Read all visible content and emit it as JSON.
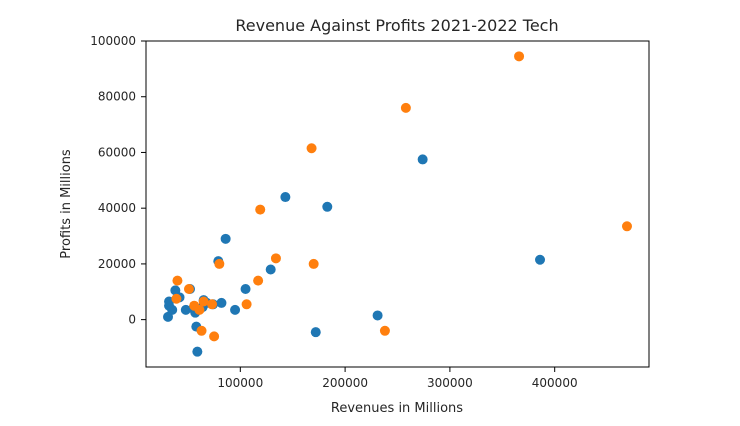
{
  "chart_data": {
    "type": "scatter",
    "title": "Revenue Against Profits 2021-2022 Tech",
    "xlabel": "Revenues in Millions",
    "ylabel": "Profits in Millions",
    "xlim": [
      10000,
      490000
    ],
    "ylim": [
      -17000,
      100000
    ],
    "x_ticks": [
      100000,
      200000,
      300000,
      400000
    ],
    "y_ticks": [
      0,
      20000,
      40000,
      60000,
      80000,
      100000
    ],
    "grid": false,
    "legend": "none",
    "series": [
      {
        "color": "#1f77b4",
        "points": [
          [
            31000,
            1000
          ],
          [
            32000,
            5000
          ],
          [
            32000,
            6500
          ],
          [
            35000,
            3500
          ],
          [
            38000,
            10500
          ],
          [
            42000,
            8000
          ],
          [
            48000,
            3500
          ],
          [
            52000,
            11000
          ],
          [
            55000,
            4000
          ],
          [
            57000,
            2500
          ],
          [
            58000,
            -2500
          ],
          [
            59000,
            -11500
          ],
          [
            64000,
            4500
          ],
          [
            65000,
            7000
          ],
          [
            68000,
            6000
          ],
          [
            74000,
            5500
          ],
          [
            79000,
            21000
          ],
          [
            82000,
            6000
          ],
          [
            86000,
            29000
          ],
          [
            95000,
            3500
          ],
          [
            105000,
            11000
          ],
          [
            129000,
            18000
          ],
          [
            143000,
            44000
          ],
          [
            172000,
            -4500
          ],
          [
            183000,
            40500
          ],
          [
            231000,
            1500
          ],
          [
            274000,
            57500
          ],
          [
            386000,
            21500
          ]
        ]
      },
      {
        "color": "#ff7f0e",
        "points": [
          [
            39000,
            7500
          ],
          [
            40000,
            14000
          ],
          [
            51000,
            11000
          ],
          [
            56000,
            5000
          ],
          [
            61000,
            3500
          ],
          [
            63000,
            -4000
          ],
          [
            65000,
            6500
          ],
          [
            73000,
            5500
          ],
          [
            75000,
            -6000
          ],
          [
            80000,
            20000
          ],
          [
            106000,
            5500
          ],
          [
            117000,
            14000
          ],
          [
            119000,
            39500
          ],
          [
            134000,
            22000
          ],
          [
            168000,
            61500
          ],
          [
            170000,
            20000
          ],
          [
            238000,
            -4000
          ],
          [
            258000,
            76000
          ],
          [
            366000,
            94500
          ],
          [
            469000,
            33500
          ]
        ]
      }
    ]
  }
}
